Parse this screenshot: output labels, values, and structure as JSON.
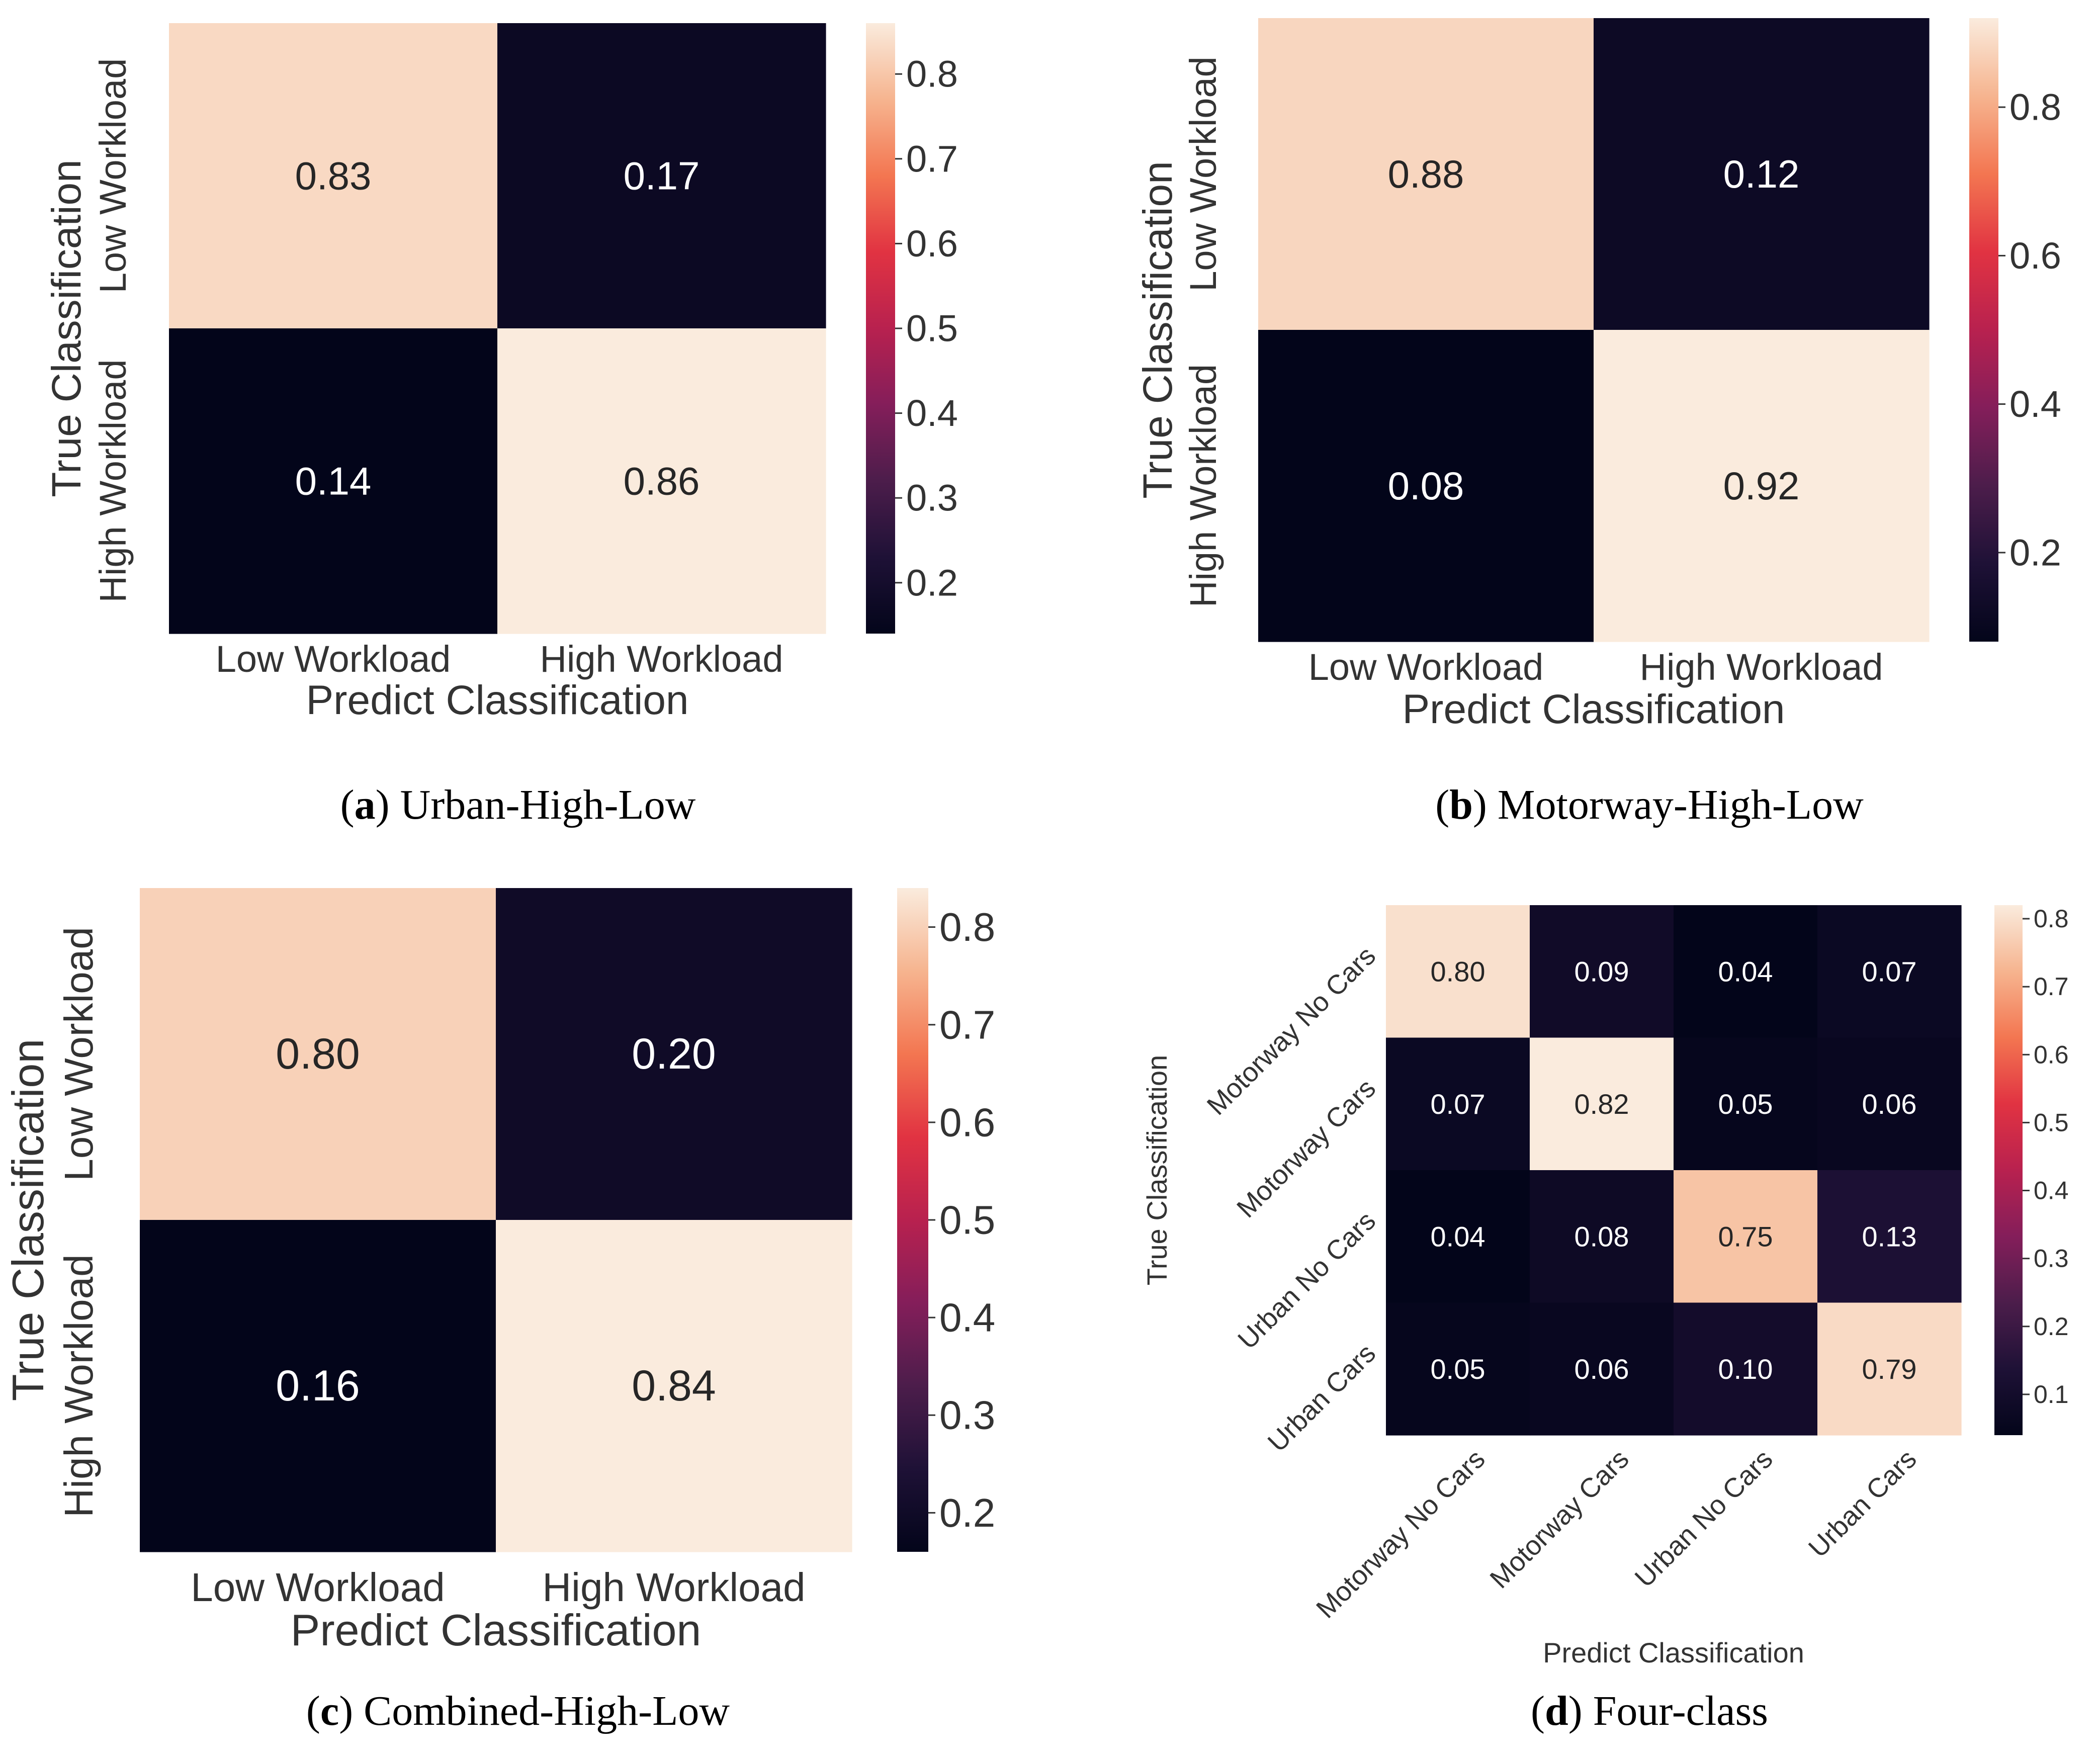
{
  "colors": {
    "colormap": [
      "#03051a",
      "#1e1136",
      "#4c1d4b",
      "#841e5a",
      "#b8214f",
      "#e13342",
      "#f37651",
      "#f6b48f",
      "#faebdd"
    ],
    "axis_text": "#333333",
    "caption_text": "#000000",
    "light_cell_text": "#262626",
    "dark_cell_text": "#ffffff"
  },
  "chart_data": [
    {
      "id": "a",
      "type": "heatmap",
      "caption_label": "a",
      "caption_title": "Urban-High-Low",
      "xlabel": "Predict Classification",
      "ylabel": "True Classification",
      "x_categories": [
        "Low Workload",
        "High Workload"
      ],
      "y_categories": [
        "Low Workload",
        "High Workload"
      ],
      "values": [
        [
          0.83,
          0.17
        ],
        [
          0.14,
          0.86
        ]
      ],
      "value_labels": [
        [
          "0.83",
          "0.17"
        ],
        [
          "0.14",
          "0.86"
        ]
      ],
      "colorbar": {
        "vmin": 0.14,
        "vmax": 0.86,
        "ticks": [
          0.2,
          0.3,
          0.4,
          0.5,
          0.6,
          0.7,
          0.8
        ],
        "tick_labels": [
          "0.2",
          "0.3",
          "0.4",
          "0.5",
          "0.6",
          "0.7",
          "0.8"
        ]
      }
    },
    {
      "id": "b",
      "type": "heatmap",
      "caption_label": "b",
      "caption_title": "Motorway-High-Low",
      "xlabel": "Predict Classification",
      "ylabel": "True Classification",
      "x_categories": [
        "Low Workload",
        "High Workload"
      ],
      "y_categories": [
        "Low Workload",
        "High Workload"
      ],
      "values": [
        [
          0.88,
          0.12
        ],
        [
          0.08,
          0.92
        ]
      ],
      "value_labels": [
        [
          "0.88",
          "0.12"
        ],
        [
          "0.08",
          "0.92"
        ]
      ],
      "colorbar": {
        "vmin": 0.08,
        "vmax": 0.92,
        "ticks": [
          0.2,
          0.4,
          0.6,
          0.8
        ],
        "tick_labels": [
          "0.2",
          "0.4",
          "0.6",
          "0.8"
        ]
      }
    },
    {
      "id": "c",
      "type": "heatmap",
      "caption_label": "c",
      "caption_title": "Combined-High-Low",
      "xlabel": "Predict Classification",
      "ylabel": "True Classification",
      "x_categories": [
        "Low Workload",
        "High Workload"
      ],
      "y_categories": [
        "Low Workload",
        "High Workload"
      ],
      "values": [
        [
          0.8,
          0.2
        ],
        [
          0.16,
          0.84
        ]
      ],
      "value_labels": [
        [
          "0.80",
          "0.20"
        ],
        [
          "0.16",
          "0.84"
        ]
      ],
      "colorbar": {
        "vmin": 0.16,
        "vmax": 0.84,
        "ticks": [
          0.2,
          0.3,
          0.4,
          0.5,
          0.6,
          0.7,
          0.8
        ],
        "tick_labels": [
          "0.2",
          "0.3",
          "0.4",
          "0.5",
          "0.6",
          "0.7",
          "0.8"
        ]
      }
    },
    {
      "id": "d",
      "type": "heatmap",
      "caption_label": "d",
      "caption_title": "Four-class",
      "xlabel": "Predict Classification",
      "ylabel": "True Classification",
      "x_categories": [
        "Motorway No Cars",
        "Motorway Cars",
        "Urban No Cars",
        "Urban Cars"
      ],
      "y_categories": [
        "Motorway No Cars",
        "Motorway Cars",
        "Urban No Cars",
        "Urban Cars"
      ],
      "values": [
        [
          0.8,
          0.09,
          0.04,
          0.07
        ],
        [
          0.07,
          0.82,
          0.05,
          0.06
        ],
        [
          0.04,
          0.08,
          0.75,
          0.13
        ],
        [
          0.05,
          0.06,
          0.1,
          0.79
        ]
      ],
      "value_labels": [
        [
          "0.80",
          "0.09",
          "0.04",
          "0.07"
        ],
        [
          "0.07",
          "0.82",
          "0.05",
          "0.06"
        ],
        [
          "0.04",
          "0.08",
          "0.75",
          "0.13"
        ],
        [
          "0.05",
          "0.06",
          "0.10",
          "0.79"
        ]
      ],
      "colorbar": {
        "vmin": 0.04,
        "vmax": 0.82,
        "ticks": [
          0.1,
          0.2,
          0.3,
          0.4,
          0.5,
          0.6,
          0.7,
          0.8
        ],
        "tick_labels": [
          "0.1",
          "0.2",
          "0.3",
          "0.4",
          "0.5",
          "0.6",
          "0.7",
          "0.8"
        ]
      }
    }
  ]
}
